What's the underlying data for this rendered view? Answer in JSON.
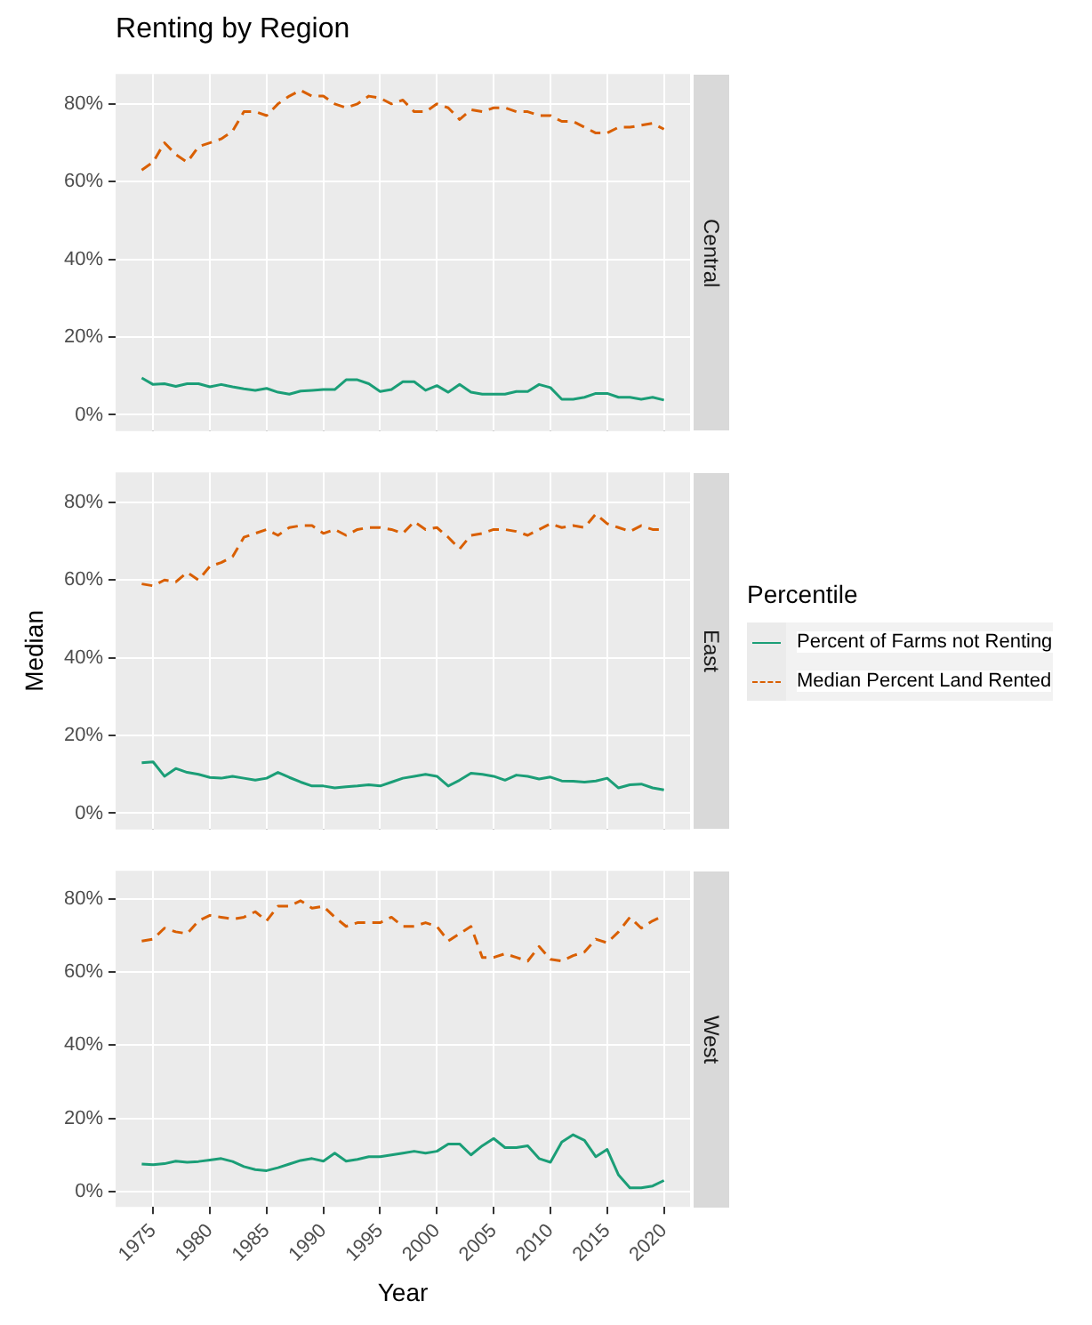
{
  "chart_data": [
    {
      "type": "line",
      "title": "Renting by Region",
      "subtitle": "Central",
      "x": [
        1974,
        1975,
        1976,
        1977,
        1978,
        1979,
        1980,
        1981,
        1982,
        1983,
        1984,
        1985,
        1986,
        1987,
        1988,
        1989,
        1990,
        1991,
        1992,
        1993,
        1994,
        1995,
        1996,
        1997,
        1998,
        1999,
        2000,
        2001,
        2002,
        2003,
        2004,
        2005,
        2006,
        2007,
        2008,
        2009,
        2010,
        2011,
        2012,
        2013,
        2014,
        2015,
        2016,
        2017,
        2018,
        2019,
        2020
      ],
      "xlim": [
        1971.7,
        2022.3
      ],
      "xticks": [
        1975,
        1980,
        1985,
        1990,
        1995,
        2000,
        2005,
        2010,
        2015,
        2020
      ],
      "ylim": [
        -4.2,
        87.7
      ],
      "yticks": [
        {
          "value": 0,
          "label": "0%"
        },
        {
          "value": 20,
          "label": "20%"
        },
        {
          "value": 40,
          "label": "40%"
        },
        {
          "value": 60,
          "label": "60%"
        },
        {
          "value": 80,
          "label": "80%"
        }
      ],
      "grid": true,
      "tick_labels": "y",
      "series": [
        {
          "color": "#1b9e77",
          "line_style": "solid",
          "values": [
            9.5,
            7.8,
            8,
            7.3,
            8,
            8,
            7.2,
            7.8,
            7.2,
            6.7,
            6.3,
            6.8,
            5.8,
            5.3,
            6.1,
            6.3,
            6.5,
            6.5,
            9,
            9,
            8,
            6,
            6.5,
            8.5,
            8.5,
            6.3,
            7.5,
            5.8,
            7.8,
            5.8,
            5.3,
            5.3,
            5.3,
            6,
            6,
            7.8,
            7,
            4,
            4,
            4.5,
            5.5,
            5.5,
            4.5,
            4.5,
            4,
            4.5,
            3.8
          ]
        },
        {
          "color": "#d95f02",
          "line_style": "dashed",
          "values": [
            63,
            65,
            70,
            67,
            65,
            69,
            70,
            71,
            73,
            78,
            78,
            77,
            80,
            82,
            83.5,
            82,
            82,
            80,
            79,
            80,
            82,
            81.5,
            80,
            81,
            78,
            78,
            80,
            79,
            76,
            78.5,
            78,
            79,
            79,
            78,
            78,
            77,
            77,
            75.5,
            75.5,
            74,
            72.5,
            72.5,
            74,
            74,
            74.5,
            75,
            73.5
          ]
        }
      ]
    },
    {
      "type": "line",
      "subtitle": "East",
      "ylabel": "Median",
      "legend": "right",
      "legend_title": "Percentile",
      "x": [
        1974,
        1975,
        1976,
        1977,
        1978,
        1979,
        1980,
        1981,
        1982,
        1983,
        1984,
        1985,
        1986,
        1987,
        1988,
        1989,
        1990,
        1991,
        1992,
        1993,
        1994,
        1995,
        1996,
        1997,
        1998,
        1999,
        2000,
        2001,
        2002,
        2003,
        2004,
        2005,
        2006,
        2007,
        2008,
        2009,
        2010,
        2011,
        2012,
        2013,
        2014,
        2015,
        2016,
        2017,
        2018,
        2019,
        2020
      ],
      "xlim": [
        1971.7,
        2022.3
      ],
      "xticks": [
        1975,
        1980,
        1985,
        1990,
        1995,
        2000,
        2005,
        2010,
        2015,
        2020
      ],
      "ylim": [
        -4.2,
        87.7
      ],
      "yticks": [
        {
          "value": 0,
          "label": "0%"
        },
        {
          "value": 20,
          "label": "20%"
        },
        {
          "value": 40,
          "label": "40%"
        },
        {
          "value": 60,
          "label": "60%"
        },
        {
          "value": 80,
          "label": "80%"
        }
      ],
      "grid": true,
      "tick_labels": "y",
      "series": [
        {
          "name": "Percent of Farms not Renting",
          "color": "#1b9e77",
          "line_style": "solid",
          "values": [
            13,
            13.2,
            9.5,
            11.5,
            10.5,
            10,
            9.2,
            9,
            9.5,
            9,
            8.5,
            9,
            10.5,
            9.2,
            8,
            7,
            7,
            6.5,
            6.8,
            7,
            7.3,
            7,
            8,
            9,
            9.5,
            10,
            9.5,
            7,
            8.5,
            10.3,
            10,
            9.5,
            8.5,
            9.8,
            9.5,
            8.8,
            9.3,
            8.3,
            8.2,
            8,
            8.3,
            9,
            6.5,
            7.3,
            7.5,
            6.5,
            6
          ]
        },
        {
          "name": "Median Percent Land Rented",
          "color": "#d95f02",
          "line_style": "dashed",
          "values": [
            59,
            58.5,
            60,
            59.5,
            62,
            60,
            63.5,
            64.5,
            66,
            71,
            72,
            73,
            71.5,
            73.5,
            74,
            74,
            72,
            73,
            71.5,
            73,
            73.5,
            73.5,
            73,
            72,
            75,
            73,
            73.5,
            71,
            68,
            71.5,
            72,
            73,
            73,
            72.5,
            71.5,
            73,
            74.5,
            73.5,
            74,
            73.5,
            77,
            74.5,
            73.5,
            72.5,
            74,
            73,
            73
          ]
        }
      ]
    },
    {
      "type": "line",
      "subtitle": "West",
      "xlabel": "Year",
      "x": [
        1974,
        1975,
        1976,
        1977,
        1978,
        1979,
        1980,
        1981,
        1982,
        1983,
        1984,
        1985,
        1986,
        1987,
        1988,
        1989,
        1990,
        1991,
        1992,
        1993,
        1994,
        1995,
        1996,
        1997,
        1998,
        1999,
        2000,
        2001,
        2002,
        2003,
        2004,
        2005,
        2006,
        2007,
        2008,
        2009,
        2010,
        2011,
        2012,
        2013,
        2014,
        2015,
        2016,
        2017,
        2018,
        2019,
        2020
      ],
      "xlim": [
        1971.7,
        2022.3
      ],
      "xticks": [
        1975,
        1980,
        1985,
        1990,
        1995,
        2000,
        2005,
        2010,
        2015,
        2020
      ],
      "ylim": [
        -4.2,
        87.7
      ],
      "yticks": [
        {
          "value": 0,
          "label": "0%"
        },
        {
          "value": 20,
          "label": "20%"
        },
        {
          "value": 40,
          "label": "40%"
        },
        {
          "value": 60,
          "label": "60%"
        },
        {
          "value": 80,
          "label": "80%"
        }
      ],
      "grid": true,
      "series": [
        {
          "color": "#1b9e77",
          "line_style": "solid",
          "values": [
            7.5,
            7.3,
            7.6,
            8.3,
            8,
            8.2,
            8.6,
            9,
            8.2,
            6.8,
            6,
            5.7,
            6.5,
            7.5,
            8.5,
            9,
            8.3,
            10.5,
            8.3,
            8.8,
            9.5,
            9.5,
            10,
            10.5,
            11,
            10.5,
            11,
            13,
            13,
            10,
            12.5,
            14.5,
            12,
            12,
            12.5,
            9,
            8,
            13.5,
            15.5,
            14,
            9.5,
            11.5,
            4.5,
            1,
            1,
            1.5,
            3
          ]
        },
        {
          "color": "#d95f02",
          "line_style": "dashed",
          "values": [
            68.5,
            69,
            72,
            71,
            70.5,
            74,
            75.5,
            75,
            74.5,
            75,
            76.5,
            74,
            78,
            78,
            79.5,
            77.5,
            78,
            75,
            72.5,
            73.5,
            73.5,
            73.5,
            75,
            72.5,
            72.5,
            73.5,
            72.5,
            68.5,
            70.5,
            72.5,
            64,
            64,
            65,
            64,
            63,
            67,
            63.5,
            63,
            64.5,
            65.5,
            69,
            68,
            71,
            75,
            72,
            74,
            75.5
          ]
        }
      ]
    }
  ]
}
